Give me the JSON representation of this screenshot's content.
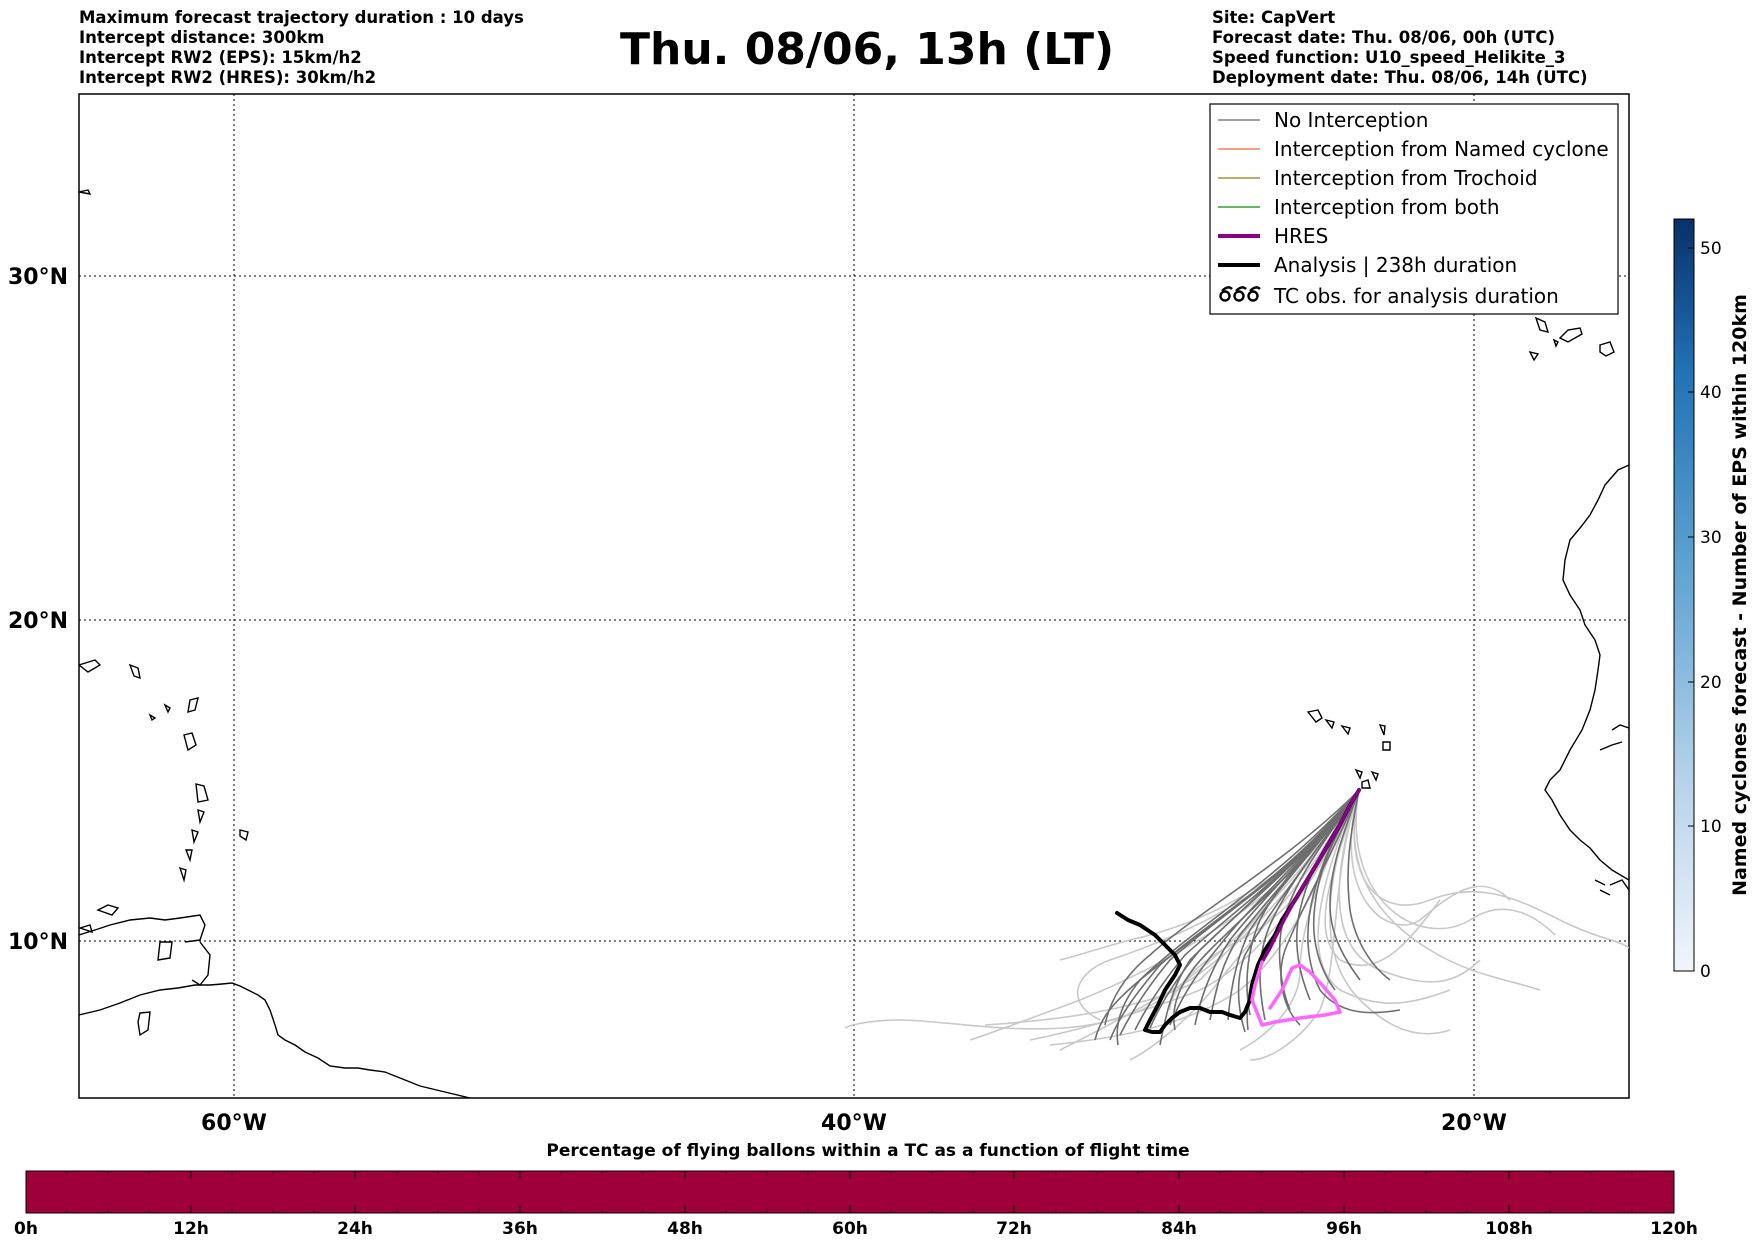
{
  "header": {
    "left": [
      "Maximum forecast trajectory duration : 10 days",
      "Intercept distance: 300km",
      "Intercept RW2 (EPS):  15km/h2",
      "Intercept RW2 (HRES): 30km/h2"
    ],
    "title": "Thu. 08/06, 13h (LT)",
    "right": [
      "Site: CapVert",
      "Forecast date: Thu. 08/06, 00h (UTC)",
      "Speed function: U10_speed_Helikite_3",
      "Deployment date: Thu. 08/06, 14h (UTC)"
    ]
  },
  "map": {
    "lat_labels": [
      "30°N",
      "20°N",
      "10°N"
    ],
    "lon_labels": [
      "60°W",
      "40°W",
      "20°W"
    ]
  },
  "legend": {
    "items": [
      {
        "label": "No Interception",
        "color": "#808080",
        "kind": "line-thin"
      },
      {
        "label": "Interception from Named cyclone",
        "color": "#ff7f50",
        "kind": "line-thin"
      },
      {
        "label": "Interception from Trochoid",
        "color": "#999933",
        "kind": "line-thin"
      },
      {
        "label": "Interception from both",
        "color": "#33a02c",
        "kind": "line-thin"
      },
      {
        "label": "HRES",
        "color": "#8b008b",
        "kind": "line-thick"
      },
      {
        "label": "Analysis | 238h duration",
        "color": "#000000",
        "kind": "line-thick"
      },
      {
        "label": "TC obs. for analysis duration",
        "color": "#000000",
        "kind": "tc-symbol"
      }
    ]
  },
  "colorbar": {
    "label": "Named cyclones forecast - Number of EPS within 120km",
    "ticks": [
      "0",
      "10",
      "20",
      "30",
      "40",
      "50"
    ],
    "min": 0,
    "max": 52
  },
  "percent_bar": {
    "title": "Percentage of flying ballons within a TC as a function of flight time",
    "color": "#a0003a",
    "ticks": [
      "0h",
      "12h",
      "24h",
      "36h",
      "48h",
      "60h",
      "72h",
      "84h",
      "96h",
      "108h",
      "120h"
    ]
  }
}
